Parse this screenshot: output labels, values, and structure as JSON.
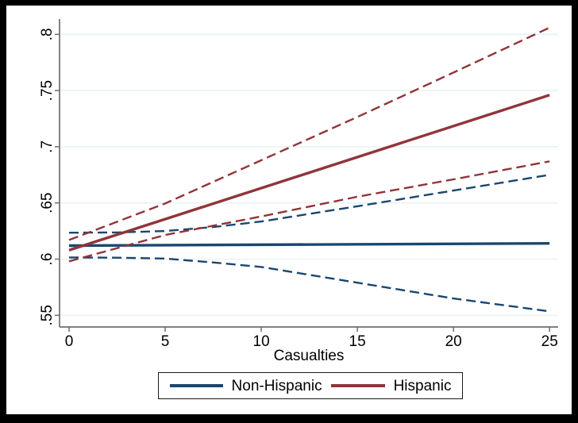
{
  "window": {
    "background": "#ffffff",
    "frame_color": "#000000"
  },
  "chart_data": {
    "type": "line",
    "title": "",
    "xlabel": "Casualties",
    "ylabel": "",
    "grid": true,
    "xlim": [
      -0.5,
      25.45
    ],
    "ylim": [
      0.545,
      0.814
    ],
    "x_ticks": [
      0,
      5,
      10,
      15,
      20,
      25
    ],
    "x_tick_labels": [
      "0",
      "5",
      "10",
      "15",
      "20",
      "25"
    ],
    "y_ticks": [
      0.55,
      0.6,
      0.65,
      0.7,
      0.75,
      0.8
    ],
    "y_tick_labels": [
      ".55",
      ".6",
      ".65",
      ".7",
      ".75",
      ".8"
    ],
    "colors": {
      "non_hispanic": "#1A476F",
      "hispanic": "#90353B",
      "gridline": "#EAF2F3",
      "axis": "#6e6e6e",
      "tick_text": "#000000"
    },
    "series": [
      {
        "name": "Non-Hispanic CI upper",
        "style": "dashed",
        "color": "#1A476F",
        "x": [
          0,
          2.5,
          5,
          7.5,
          10,
          15,
          20,
          25
        ],
        "y": [
          0.6235,
          0.6237,
          0.625,
          0.6285,
          0.6335,
          0.647,
          0.661,
          0.675
        ]
      },
      {
        "name": "Non-Hispanic CI lower",
        "style": "dashed",
        "color": "#1A476F",
        "x": [
          0,
          2.5,
          5,
          7.5,
          10,
          15,
          20,
          25
        ],
        "y": [
          0.6015,
          0.6013,
          0.6005,
          0.597,
          0.593,
          0.579,
          0.565,
          0.5535
        ]
      },
      {
        "name": "Non-Hispanic",
        "style": "solid",
        "color": "#1A476F",
        "x": [
          0,
          25
        ],
        "y": [
          0.612,
          0.614
        ]
      },
      {
        "name": "Hispanic CI upper",
        "style": "dashed",
        "color": "#90353B",
        "x": [
          0,
          5,
          10,
          15,
          20,
          25
        ],
        "y": [
          0.617,
          0.6495,
          0.688,
          0.7265,
          0.766,
          0.806
        ]
      },
      {
        "name": "Hispanic CI lower",
        "style": "dashed",
        "color": "#90353B",
        "x": [
          0,
          5,
          10,
          15,
          20,
          25
        ],
        "y": [
          0.598,
          0.6215,
          0.638,
          0.6555,
          0.671,
          0.687
        ]
      },
      {
        "name": "Hispanic",
        "style": "solid",
        "color": "#90353B",
        "x": [
          0,
          25
        ],
        "y": [
          0.608,
          0.746
        ]
      }
    ],
    "legend": {
      "position": "bottom-center",
      "entries": [
        {
          "label": "Non-Hispanic",
          "color": "#1A476F",
          "style": "solid"
        },
        {
          "label": "Hispanic",
          "color": "#90353B",
          "style": "solid"
        }
      ]
    }
  }
}
